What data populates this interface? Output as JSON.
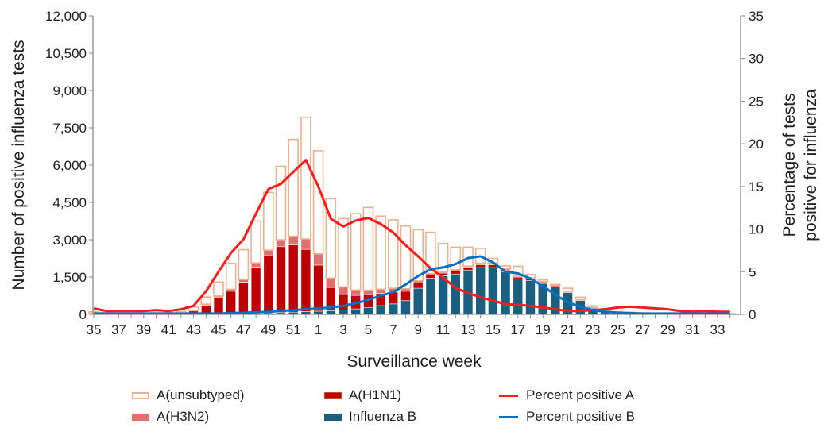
{
  "chart_data": {
    "type": "bar",
    "subtype": "stacked-bar-with-lines",
    "title": "",
    "xlabel": "Surveillance week",
    "ylabel": "Number of positive influenza tests",
    "y2label_line1": "Percentage of tests",
    "y2label_line2": "positive for influenza",
    "ylim": [
      0,
      12000
    ],
    "y2lim": [
      0,
      35
    ],
    "yticks": [
      "0",
      "1,500",
      "3,000",
      "4,500",
      "6,000",
      "7,500",
      "9,000",
      "10,500",
      "12,000"
    ],
    "ytick_values": [
      0,
      1500,
      3000,
      4500,
      6000,
      7500,
      9000,
      10500,
      12000
    ],
    "y2ticks": [
      "0",
      "5",
      "10",
      "15",
      "20",
      "25",
      "30",
      "35"
    ],
    "y2tick_values": [
      0,
      5,
      10,
      15,
      20,
      25,
      30,
      35
    ],
    "grid": false,
    "legend_position": "bottom",
    "categories": [
      "35",
      "36",
      "37",
      "38",
      "39",
      "40",
      "41",
      "42",
      "43",
      "44",
      "45",
      "46",
      "47",
      "48",
      "49",
      "50",
      "51",
      "52",
      "1",
      "2",
      "3",
      "4",
      "5",
      "6",
      "7",
      "8",
      "9",
      "10",
      "11",
      "12",
      "13",
      "14",
      "15",
      "16",
      "17",
      "18",
      "19",
      "20",
      "21",
      "22",
      "23",
      "24",
      "25",
      "26",
      "27",
      "28",
      "29",
      "30",
      "31",
      "32",
      "33",
      "34"
    ],
    "xtick_labels": [
      "35",
      "37",
      "39",
      "41",
      "43",
      "45",
      "47",
      "49",
      "51",
      "1",
      "3",
      "5",
      "7",
      "9",
      "11",
      "13",
      "15",
      "17",
      "19",
      "21",
      "23",
      "25",
      "27",
      "29",
      "31",
      "33"
    ],
    "series": [
      {
        "name": "Influenza B",
        "kind": "bar",
        "color": "#1a5f80",
        "values": [
          10,
          10,
          10,
          10,
          10,
          10,
          10,
          10,
          15,
          20,
          25,
          30,
          40,
          50,
          60,
          70,
          90,
          110,
          130,
          150,
          180,
          220,
          280,
          350,
          420,
          550,
          1050,
          1450,
          1550,
          1620,
          1780,
          1880,
          1880,
          1700,
          1430,
          1350,
          1240,
          1100,
          880,
          560,
          250,
          120,
          60,
          40,
          30,
          20,
          20,
          15,
          15,
          15,
          10,
          10
        ]
      },
      {
        "name": "A(H1N1)",
        "kind": "bar",
        "color": "#c00000",
        "values": [
          20,
          10,
          10,
          10,
          10,
          15,
          20,
          40,
          120,
          350,
          650,
          900,
          1250,
          1850,
          2300,
          2650,
          2700,
          2500,
          1850,
          930,
          620,
          540,
          510,
          500,
          480,
          380,
          220,
          130,
          110,
          120,
          110,
          120,
          110,
          80,
          70,
          70,
          60,
          40,
          30,
          20,
          20,
          15,
          15,
          15,
          10,
          10,
          10,
          10,
          10,
          10,
          10,
          10
        ]
      },
      {
        "name": "A(H3N2)",
        "kind": "bar",
        "color": "#e0706e",
        "values": [
          10,
          5,
          5,
          5,
          5,
          5,
          10,
          10,
          20,
          40,
          60,
          80,
          110,
          170,
          220,
          280,
          350,
          420,
          450,
          380,
          300,
          220,
          180,
          160,
          150,
          100,
          80,
          60,
          50,
          50,
          50,
          60,
          60,
          50,
          40,
          40,
          30,
          20,
          15,
          10,
          10,
          5,
          5,
          5,
          5,
          5,
          5,
          5,
          5,
          5,
          5,
          5
        ]
      },
      {
        "name": "A(unsubtyped)",
        "kind": "bar",
        "color": "#f0b08c",
        "values": [
          60,
          35,
          25,
          25,
          25,
          30,
          30,
          60,
          145,
          290,
          565,
          1040,
          1200,
          1680,
          2320,
          2950,
          3890,
          4890,
          4150,
          3190,
          2750,
          3070,
          3330,
          2940,
          2750,
          2520,
          2050,
          1660,
          1140,
          910,
          760,
          590,
          200,
          120,
          390,
          140,
          70,
          40,
          125,
          100,
          60,
          40,
          30,
          20,
          15,
          15,
          15,
          10,
          10,
          10,
          10,
          10
        ]
      },
      {
        "name": "Percent positive A",
        "kind": "line",
        "axis": "right",
        "color": "#ff1a1a",
        "values": [
          0.7,
          0.4,
          0.4,
          0.4,
          0.4,
          0.5,
          0.4,
          0.6,
          1.0,
          2.7,
          5.0,
          7.2,
          8.8,
          11.8,
          14.7,
          15.3,
          16.7,
          18.1,
          15.0,
          11.2,
          10.3,
          11.0,
          11.3,
          10.6,
          9.6,
          8.1,
          6.8,
          5.4,
          4.3,
          3.1,
          2.5,
          2.0,
          1.6,
          1.2,
          1.1,
          1.0,
          0.8,
          0.6,
          0.4,
          0.4,
          0.5,
          0.6,
          0.8,
          0.9,
          0.8,
          0.7,
          0.6,
          0.4,
          0.3,
          0.4,
          0.3,
          0.3
        ]
      },
      {
        "name": "Percent positive B",
        "kind": "line",
        "axis": "right",
        "color": "#0a6fc2",
        "values": [
          0.1,
          0.1,
          0.1,
          0.1,
          0.1,
          0.1,
          0.1,
          0.1,
          0.1,
          0.1,
          0.1,
          0.15,
          0.2,
          0.25,
          0.3,
          0.4,
          0.5,
          0.6,
          0.7,
          0.8,
          1.0,
          1.3,
          1.7,
          2.2,
          2.6,
          3.5,
          4.5,
          5.3,
          5.5,
          5.9,
          6.6,
          6.8,
          6.1,
          5.0,
          4.8,
          4.2,
          3.3,
          2.3,
          1.4,
          0.9,
          0.5,
          0.3,
          0.2,
          0.15,
          0.1,
          0.1,
          0.1,
          0.1,
          0.1,
          0.1,
          0.1,
          0.1
        ]
      }
    ]
  },
  "legend": {
    "items": [
      {
        "label": "A(unsubtyped)",
        "swatch": "outline",
        "color": "#f0b08c"
      },
      {
        "label": "A(H3N2)",
        "swatch": "fill",
        "color": "#e0706e"
      },
      {
        "label": "A(H1N1)",
        "swatch": "fill",
        "color": "#c00000"
      },
      {
        "label": "Influenza B",
        "swatch": "fill",
        "color": "#1a5f80"
      },
      {
        "label": "Percent positive A",
        "swatch": "line",
        "color": "#ff1a1a"
      },
      {
        "label": "Percent positive B",
        "swatch": "line",
        "color": "#0a6fc2"
      }
    ]
  }
}
